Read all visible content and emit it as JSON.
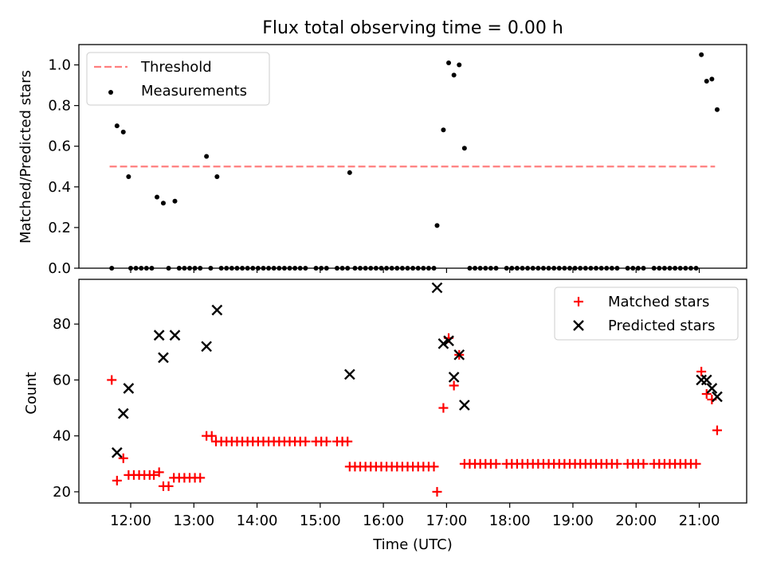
{
  "figure": {
    "title": "Flux total observing time = 0.00 h",
    "xlabel": "Time (UTC)"
  },
  "colors": {
    "threshold": "#ff7f7f",
    "measurements": "#000000",
    "matched": "#ff0000",
    "predicted": "#000000"
  },
  "chart_data": [
    {
      "type": "scatter",
      "title": "Flux total observing time = 0.00 h",
      "ylabel": "Matched/Predicted stars",
      "ylim": [
        0,
        1.1
      ],
      "yticks": [
        "0.0",
        "0.2",
        "0.4",
        "0.6",
        "0.8",
        "1.0"
      ],
      "xticks": [
        "12:00",
        "13:00",
        "14:00",
        "15:00",
        "16:00",
        "17:00",
        "18:00",
        "19:00",
        "20:00",
        "21:00"
      ],
      "legend": {
        "placement": "upper-left",
        "entries": [
          "Threshold",
          "Measurements"
        ]
      },
      "threshold": {
        "name": "Threshold",
        "value": 0.5,
        "x_range": [
          "11:40",
          "21:15"
        ]
      },
      "series": [
        {
          "name": "Measurements",
          "points": [
            [
              "11:42",
              0.0
            ],
            [
              "11:47",
              0.7
            ],
            [
              "11:53",
              0.67
            ],
            [
              "11:58",
              0.45
            ],
            [
              "12:00",
              0.0
            ],
            [
              "12:05",
              0.0
            ],
            [
              "12:10",
              0.0
            ],
            [
              "12:15",
              0.0
            ],
            [
              "12:20",
              0.0
            ],
            [
              "12:25",
              0.35
            ],
            [
              "12:31",
              0.32
            ],
            [
              "12:36",
              0.0
            ],
            [
              "12:42",
              0.33
            ],
            [
              "12:46",
              0.0
            ],
            [
              "12:51",
              0.0
            ],
            [
              "12:56",
              0.0
            ],
            [
              "13:01",
              0.0
            ],
            [
              "13:06",
              0.0
            ],
            [
              "13:12",
              0.55
            ],
            [
              "13:16",
              0.0
            ],
            [
              "13:22",
              0.45
            ],
            [
              "13:26",
              0.0
            ],
            [
              "13:31",
              0.0
            ],
            [
              "13:36",
              0.0
            ],
            [
              "13:41",
              0.0
            ],
            [
              "13:46",
              0.0
            ],
            [
              "13:51",
              0.0
            ],
            [
              "13:56",
              0.0
            ],
            [
              "14:01",
              0.0
            ],
            [
              "14:06",
              0.0
            ],
            [
              "14:11",
              0.0
            ],
            [
              "14:16",
              0.0
            ],
            [
              "14:21",
              0.0
            ],
            [
              "14:26",
              0.0
            ],
            [
              "14:31",
              0.0
            ],
            [
              "14:36",
              0.0
            ],
            [
              "14:41",
              0.0
            ],
            [
              "14:46",
              0.0
            ],
            [
              "14:56",
              0.0
            ],
            [
              "15:01",
              0.0
            ],
            [
              "15:06",
              0.0
            ],
            [
              "15:16",
              0.0
            ],
            [
              "15:21",
              0.0
            ],
            [
              "15:26",
              0.0
            ],
            [
              "15:28",
              0.47
            ],
            [
              "15:33",
              0.0
            ],
            [
              "15:38",
              0.0
            ],
            [
              "15:43",
              0.0
            ],
            [
              "15:48",
              0.0
            ],
            [
              "15:53",
              0.0
            ],
            [
              "15:58",
              0.0
            ],
            [
              "16:03",
              0.0
            ],
            [
              "16:08",
              0.0
            ],
            [
              "16:13",
              0.0
            ],
            [
              "16:18",
              0.0
            ],
            [
              "16:23",
              0.0
            ],
            [
              "16:28",
              0.0
            ],
            [
              "16:33",
              0.0
            ],
            [
              "16:38",
              0.0
            ],
            [
              "16:43",
              0.0
            ],
            [
              "16:48",
              0.0
            ],
            [
              "16:51",
              0.21
            ],
            [
              "16:57",
              0.68
            ],
            [
              "17:02",
              1.01
            ],
            [
              "17:07",
              0.95
            ],
            [
              "17:12",
              1.0
            ],
            [
              "17:17",
              0.59
            ],
            [
              "17:22",
              0.0
            ],
            [
              "17:27",
              0.0
            ],
            [
              "17:32",
              0.0
            ],
            [
              "17:37",
              0.0
            ],
            [
              "17:42",
              0.0
            ],
            [
              "17:47",
              0.0
            ],
            [
              "17:57",
              0.0
            ],
            [
              "18:02",
              0.0
            ],
            [
              "18:07",
              0.0
            ],
            [
              "18:12",
              0.0
            ],
            [
              "18:17",
              0.0
            ],
            [
              "18:22",
              0.0
            ],
            [
              "18:27",
              0.0
            ],
            [
              "18:32",
              0.0
            ],
            [
              "18:37",
              0.0
            ],
            [
              "18:42",
              0.0
            ],
            [
              "18:47",
              0.0
            ],
            [
              "18:52",
              0.0
            ],
            [
              "18:57",
              0.0
            ],
            [
              "19:02",
              0.0
            ],
            [
              "19:07",
              0.0
            ],
            [
              "19:12",
              0.0
            ],
            [
              "19:17",
              0.0
            ],
            [
              "19:22",
              0.0
            ],
            [
              "19:27",
              0.0
            ],
            [
              "19:32",
              0.0
            ],
            [
              "19:37",
              0.0
            ],
            [
              "19:42",
              0.0
            ],
            [
              "19:52",
              0.0
            ],
            [
              "19:57",
              0.0
            ],
            [
              "20:02",
              0.0
            ],
            [
              "20:07",
              0.0
            ],
            [
              "20:17",
              0.0
            ],
            [
              "20:22",
              0.0
            ],
            [
              "20:27",
              0.0
            ],
            [
              "20:32",
              0.0
            ],
            [
              "20:37",
              0.0
            ],
            [
              "20:42",
              0.0
            ],
            [
              "20:47",
              0.0
            ],
            [
              "20:52",
              0.0
            ],
            [
              "20:57",
              0.0
            ],
            [
              "21:02",
              1.05
            ],
            [
              "21:07",
              0.92
            ],
            [
              "21:12",
              0.93
            ],
            [
              "21:17",
              0.78
            ]
          ]
        }
      ]
    },
    {
      "type": "scatter",
      "xlabel": "Time (UTC)",
      "ylabel": "Count",
      "ylim": [
        16,
        96
      ],
      "yticks": [
        "20",
        "40",
        "60",
        "80"
      ],
      "xticks": [
        "12:00",
        "13:00",
        "14:00",
        "15:00",
        "16:00",
        "17:00",
        "18:00",
        "19:00",
        "20:00",
        "21:00"
      ],
      "legend": {
        "placement": "upper-right",
        "entries": [
          "Matched stars",
          "Predicted stars"
        ]
      },
      "series": [
        {
          "name": "Matched stars",
          "points": [
            [
              "11:42",
              60
            ],
            [
              "11:47",
              24
            ],
            [
              "11:53",
              32
            ],
            [
              "11:58",
              26
            ],
            [
              "12:03",
              26
            ],
            [
              "12:08",
              26
            ],
            [
              "12:13",
              26
            ],
            [
              "12:18",
              26
            ],
            [
              "12:22",
              26
            ],
            [
              "12:27",
              27
            ],
            [
              "12:31",
              22
            ],
            [
              "12:36",
              22
            ],
            [
              "12:41",
              25
            ],
            [
              "12:46",
              25
            ],
            [
              "12:51",
              25
            ],
            [
              "12:56",
              25
            ],
            [
              "13:01",
              25
            ],
            [
              "13:06",
              25
            ],
            [
              "13:12",
              40
            ],
            [
              "13:17",
              40
            ],
            [
              "13:21",
              38
            ],
            [
              "13:26",
              38
            ],
            [
              "13:31",
              38
            ],
            [
              "13:36",
              38
            ],
            [
              "13:41",
              38
            ],
            [
              "13:46",
              38
            ],
            [
              "13:51",
              38
            ],
            [
              "13:56",
              38
            ],
            [
              "14:01",
              38
            ],
            [
              "14:06",
              38
            ],
            [
              "14:11",
              38
            ],
            [
              "14:16",
              38
            ],
            [
              "14:21",
              38
            ],
            [
              "14:26",
              38
            ],
            [
              "14:31",
              38
            ],
            [
              "14:36",
              38
            ],
            [
              "14:41",
              38
            ],
            [
              "14:46",
              38
            ],
            [
              "14:56",
              38
            ],
            [
              "15:01",
              38
            ],
            [
              "15:06",
              38
            ],
            [
              "15:16",
              38
            ],
            [
              "15:21",
              38
            ],
            [
              "15:26",
              38
            ],
            [
              "15:28",
              29
            ],
            [
              "15:33",
              29
            ],
            [
              "15:38",
              29
            ],
            [
              "15:43",
              29
            ],
            [
              "15:48",
              29
            ],
            [
              "15:53",
              29
            ],
            [
              "15:58",
              29
            ],
            [
              "16:03",
              29
            ],
            [
              "16:08",
              29
            ],
            [
              "16:13",
              29
            ],
            [
              "16:18",
              29
            ],
            [
              "16:23",
              29
            ],
            [
              "16:28",
              29
            ],
            [
              "16:33",
              29
            ],
            [
              "16:38",
              29
            ],
            [
              "16:43",
              29
            ],
            [
              "16:48",
              29
            ],
            [
              "16:51",
              20
            ],
            [
              "16:57",
              50
            ],
            [
              "17:02",
              75
            ],
            [
              "17:07",
              58
            ],
            [
              "17:12",
              69
            ],
            [
              "17:17",
              30
            ],
            [
              "17:22",
              30
            ],
            [
              "17:27",
              30
            ],
            [
              "17:32",
              30
            ],
            [
              "17:37",
              30
            ],
            [
              "17:42",
              30
            ],
            [
              "17:47",
              30
            ],
            [
              "17:57",
              30
            ],
            [
              "18:02",
              30
            ],
            [
              "18:07",
              30
            ],
            [
              "18:12",
              30
            ],
            [
              "18:17",
              30
            ],
            [
              "18:22",
              30
            ],
            [
              "18:27",
              30
            ],
            [
              "18:32",
              30
            ],
            [
              "18:37",
              30
            ],
            [
              "18:42",
              30
            ],
            [
              "18:47",
              30
            ],
            [
              "18:52",
              30
            ],
            [
              "18:57",
              30
            ],
            [
              "19:02",
              30
            ],
            [
              "19:07",
              30
            ],
            [
              "19:12",
              30
            ],
            [
              "19:17",
              30
            ],
            [
              "19:22",
              30
            ],
            [
              "19:27",
              30
            ],
            [
              "19:32",
              30
            ],
            [
              "19:37",
              30
            ],
            [
              "19:42",
              30
            ],
            [
              "19:52",
              30
            ],
            [
              "19:57",
              30
            ],
            [
              "20:02",
              30
            ],
            [
              "20:07",
              30
            ],
            [
              "20:17",
              30
            ],
            [
              "20:22",
              30
            ],
            [
              "20:27",
              30
            ],
            [
              "20:32",
              30
            ],
            [
              "20:37",
              30
            ],
            [
              "20:42",
              30
            ],
            [
              "20:47",
              30
            ],
            [
              "20:52",
              30
            ],
            [
              "20:57",
              30
            ],
            [
              "21:02",
              63
            ],
            [
              "21:07",
              55
            ],
            [
              "21:12",
              53
            ],
            [
              "21:17",
              42
            ]
          ]
        },
        {
          "name": "Predicted stars",
          "points": [
            [
              "11:47",
              34
            ],
            [
              "11:53",
              48
            ],
            [
              "11:58",
              57
            ],
            [
              "12:27",
              76
            ],
            [
              "12:31",
              68
            ],
            [
              "12:42",
              76
            ],
            [
              "13:12",
              72
            ],
            [
              "13:22",
              85
            ],
            [
              "15:28",
              62
            ],
            [
              "16:51",
              93
            ],
            [
              "16:57",
              73
            ],
            [
              "17:02",
              74
            ],
            [
              "17:07",
              61
            ],
            [
              "17:12",
              69
            ],
            [
              "17:17",
              51
            ],
            [
              "21:02",
              60
            ],
            [
              "21:07",
              60
            ],
            [
              "21:12",
              57
            ],
            [
              "21:17",
              54
            ]
          ]
        }
      ]
    }
  ]
}
